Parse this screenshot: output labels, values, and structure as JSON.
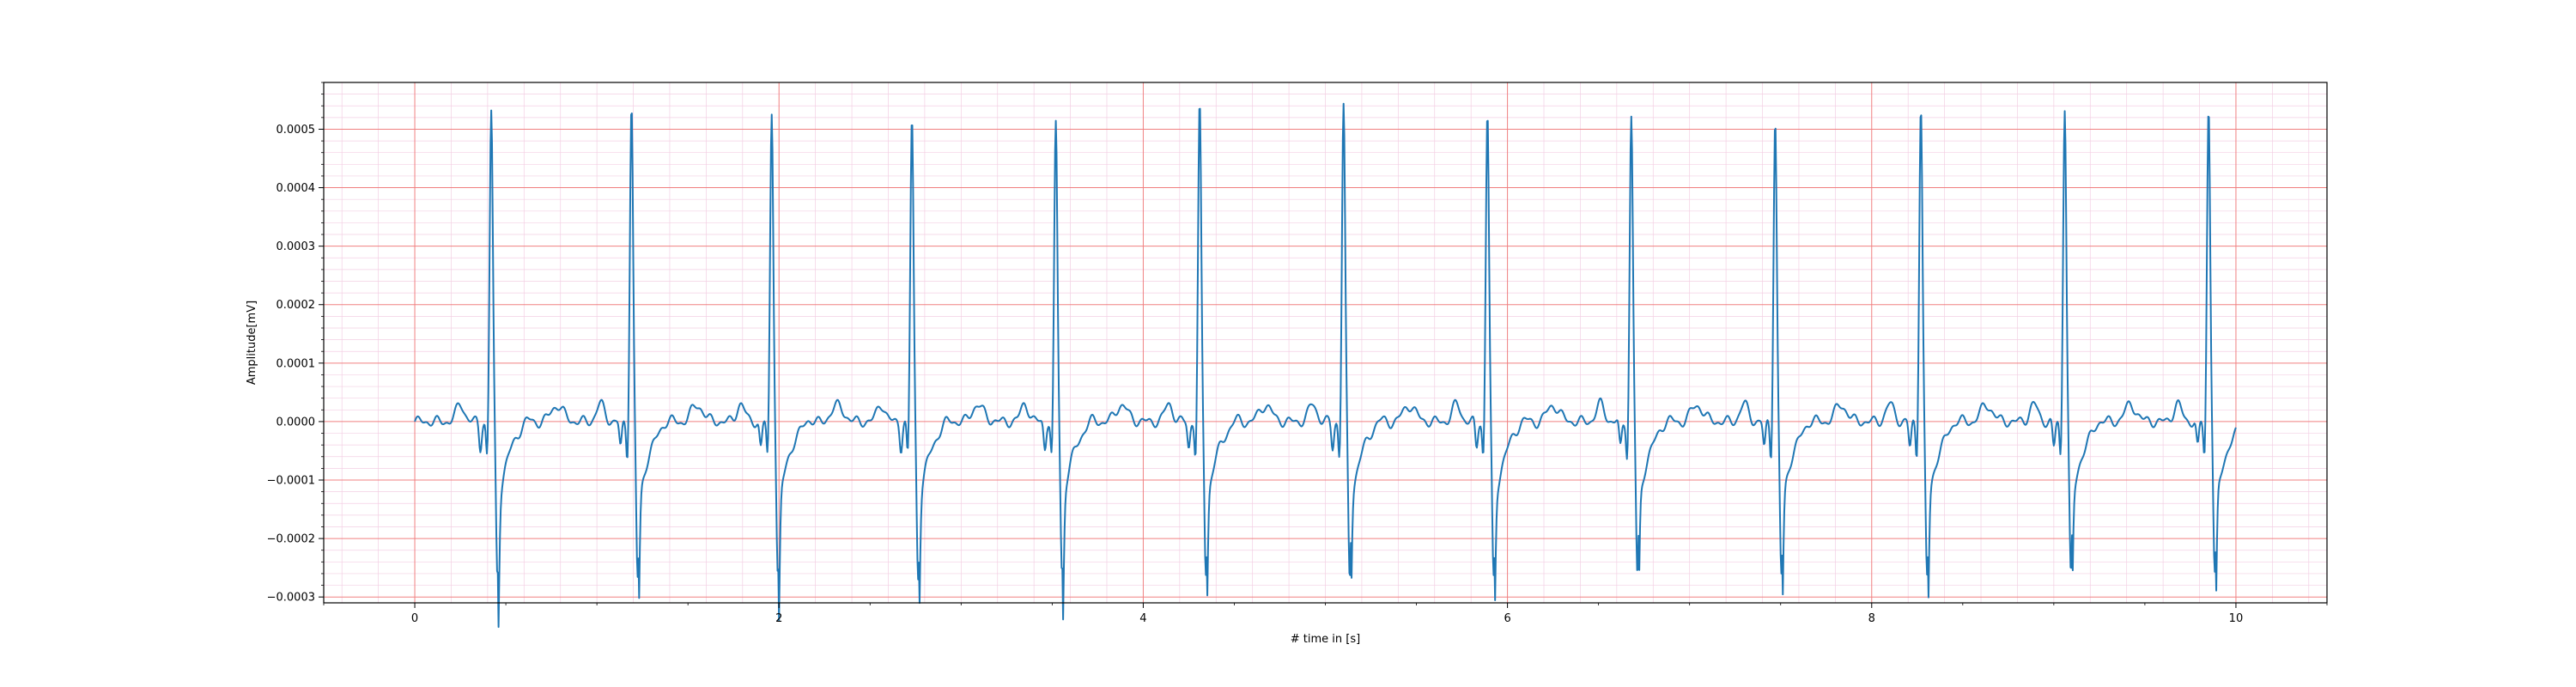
{
  "chart_data": {
    "type": "line",
    "title": "",
    "xlabel": "# time in [s]",
    "ylabel": "Amplitude[mV]",
    "xlim": [
      -0.5,
      10.5
    ],
    "ylim": [
      -0.00031,
      0.00058
    ],
    "x_ticks": [
      0,
      2,
      4,
      6,
      8,
      10
    ],
    "x_tick_labels": [
      "0",
      "2",
      "4",
      "6",
      "8",
      "10"
    ],
    "y_ticks": [
      -0.0003,
      -0.0002,
      -0.0001,
      0.0,
      0.0001,
      0.0002,
      0.0003,
      0.0004,
      0.0005
    ],
    "y_tick_labels": [
      "−0.0003",
      "−0.0002",
      "−0.0001",
      "0.0000",
      "0.0001",
      "0.0002",
      "0.0003",
      "0.0004",
      "0.0005"
    ],
    "grid": {
      "major": true,
      "minor": true,
      "major_color": "#f08080",
      "minor_color": "#f3cfe3"
    },
    "line_color": "#1f77b4",
    "series": [
      {
        "sample_interval_s": 0.004,
        "start_s": 0.0,
        "end_s": 10.0,
        "beat_times_s": [
          0.42,
          1.19,
          1.96,
          2.73,
          3.52,
          4.31,
          5.1,
          5.89,
          6.68,
          7.47,
          8.27,
          9.06,
          9.85
        ],
        "r_peaks_mV": [
          0.00053,
          0.00054,
          0.00053,
          0.00052,
          0.00051,
          0.00054,
          0.00054,
          0.00053,
          0.00052,
          0.000515,
          0.00054,
          0.00054,
          0.00054
        ],
        "s_troughs_mV": [
          -0.000265,
          -0.000268,
          -0.000265,
          -0.000265,
          -0.000258,
          -0.000258,
          -0.000268,
          -0.00027,
          -0.000268,
          -0.000262,
          -0.000265,
          -0.000267,
          -0.000262
        ],
        "t_wave_amplitude_mV": 2.8e-05,
        "p_wave_amplitude_mV": 3e-05,
        "baseline_mV": 0.0
      }
    ]
  }
}
